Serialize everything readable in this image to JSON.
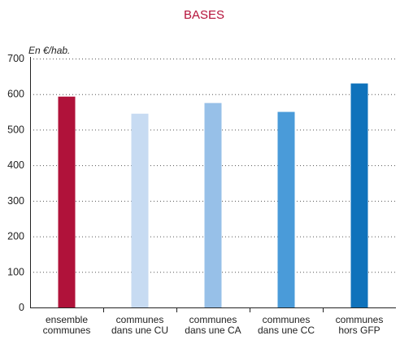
{
  "chart_data": {
    "type": "bar",
    "title": "BASES",
    "unit_label": "En €/hab.",
    "xlabel": "",
    "ylabel": "",
    "ylim": [
      0,
      700
    ],
    "yticks": [
      0,
      100,
      200,
      300,
      400,
      500,
      600,
      700
    ],
    "grid": true,
    "categories": [
      [
        "ensemble",
        "communes"
      ],
      [
        "communes",
        "dans une CU"
      ],
      [
        "communes",
        "dans une CA"
      ],
      [
        "communes",
        "dans une CC"
      ],
      [
        "communes",
        "hors GFP"
      ]
    ],
    "values": [
      593,
      545,
      575,
      550,
      630
    ],
    "colors": [
      "#b0123a",
      "#c7dbf2",
      "#97c0e8",
      "#4a9bd9",
      "#0f72bb"
    ]
  }
}
